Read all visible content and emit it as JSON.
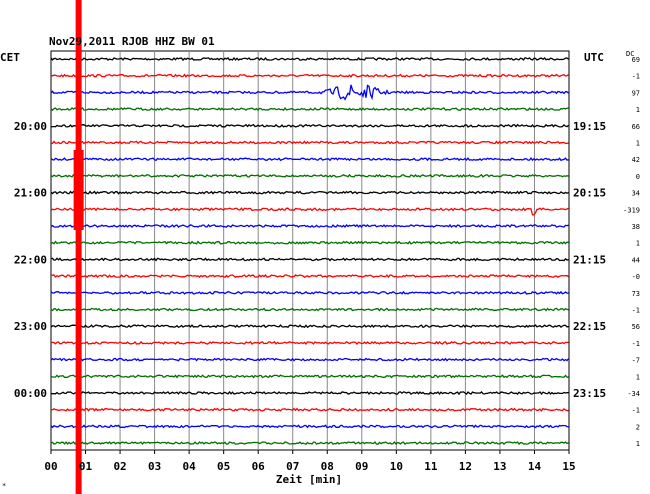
{
  "header": {
    "title": "Nov29,2011   RJOB HHZ BW 01",
    "left_zone": "CET",
    "right_zone": "UTC",
    "dc_label": "DC"
  },
  "chart_data": {
    "type": "line",
    "title": "Nov29,2011   RJOB HHZ BW 01",
    "xlabel": "Zeit [min]",
    "xlim": [
      0,
      15
    ],
    "x_ticks": [
      "00",
      "01",
      "02",
      "03",
      "04",
      "05",
      "06",
      "07",
      "08",
      "09",
      "10",
      "11",
      "12",
      "13",
      "14",
      "15"
    ],
    "grid": true,
    "left_time_labels": [
      {
        "row": 4,
        "label": "20:00"
      },
      {
        "row": 8,
        "label": "21:00"
      },
      {
        "row": 12,
        "label": "22:00"
      },
      {
        "row": 16,
        "label": "23:00"
      },
      {
        "row": 20,
        "label": "00:00"
      }
    ],
    "right_time_labels": [
      {
        "row": 4,
        "label": "19:15"
      },
      {
        "row": 8,
        "label": "20:15"
      },
      {
        "row": 12,
        "label": "21:15"
      },
      {
        "row": 16,
        "label": "22:15"
      },
      {
        "row": 20,
        "label": "23:15"
      }
    ],
    "trace_colors": [
      "#000000",
      "#ff0000",
      "#0000ff",
      "#007000"
    ],
    "dc_offsets": [
      "69",
      "-1",
      "97",
      "1",
      "66",
      "1",
      "42",
      "0",
      "34",
      "-319",
      "38",
      "1",
      "44",
      "-0",
      "73",
      "-1",
      "56",
      "-1",
      "-7",
      "1",
      "-34",
      "-1",
      "2",
      "1"
    ],
    "events": [
      {
        "row": 2,
        "minute_start": 7.6,
        "minute_end": 10.2,
        "minute_peak": 8.8,
        "note": "earthquake"
      },
      {
        "row": 9,
        "minute_start": 13.8,
        "minute_end": 14.1,
        "minute_peak": 13.95
      }
    ],
    "saturated_minute": 0.8
  },
  "marker": {
    "glyph": "*"
  }
}
